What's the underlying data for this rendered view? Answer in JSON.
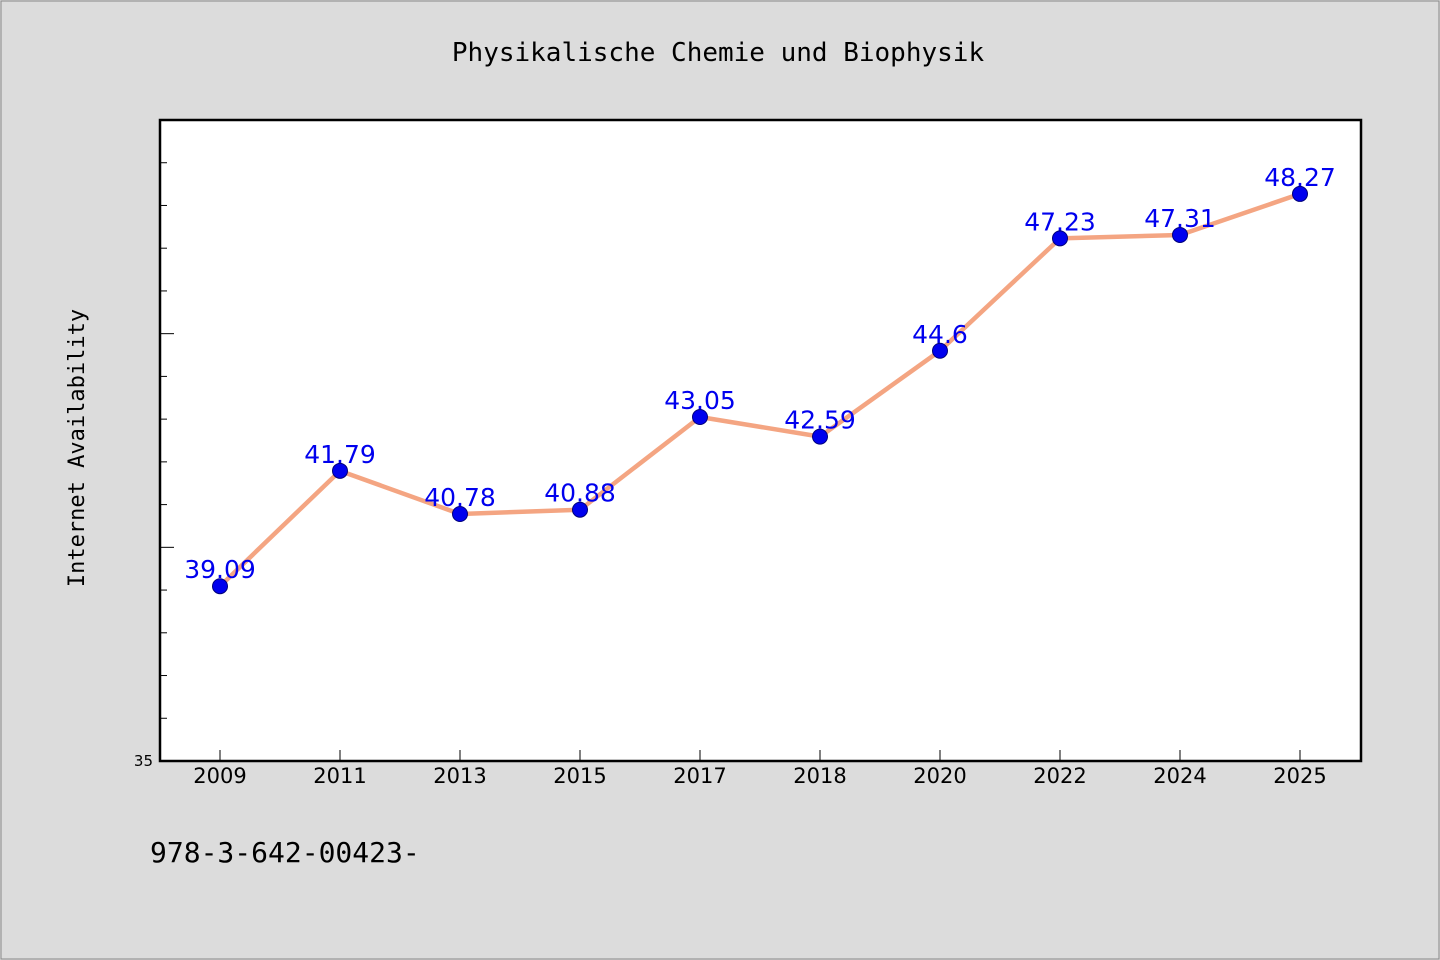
{
  "chart_data": {
    "type": "line",
    "title": "Physikalische Chemie und Biophysik",
    "ylabel": "Internet Availability",
    "xlabel": "",
    "categories": [
      "2009",
      "2011",
      "2013",
      "2015",
      "2017",
      "2018",
      "2020",
      "2022",
      "2024",
      "2025"
    ],
    "series": [
      {
        "values": [
          39.09,
          41.79,
          40.78,
          40.88,
          43.05,
          42.59,
          44.6,
          47.23,
          47.31,
          48.27
        ],
        "labels": [
          "39.09",
          "41.79",
          "40.78",
          "40.88",
          "43.05",
          "42.59",
          "44.6",
          "47.23",
          "47.31",
          "48.27"
        ]
      }
    ],
    "ylim": [
      35,
      50
    ],
    "y_tick_labels": [
      "35"
    ],
    "grid": false,
    "legend": "none",
    "line_color": "#f4a582",
    "marker_color": "#0000ee",
    "label_color": "#0000ee"
  },
  "footnote": "978-3-642-00423-"
}
